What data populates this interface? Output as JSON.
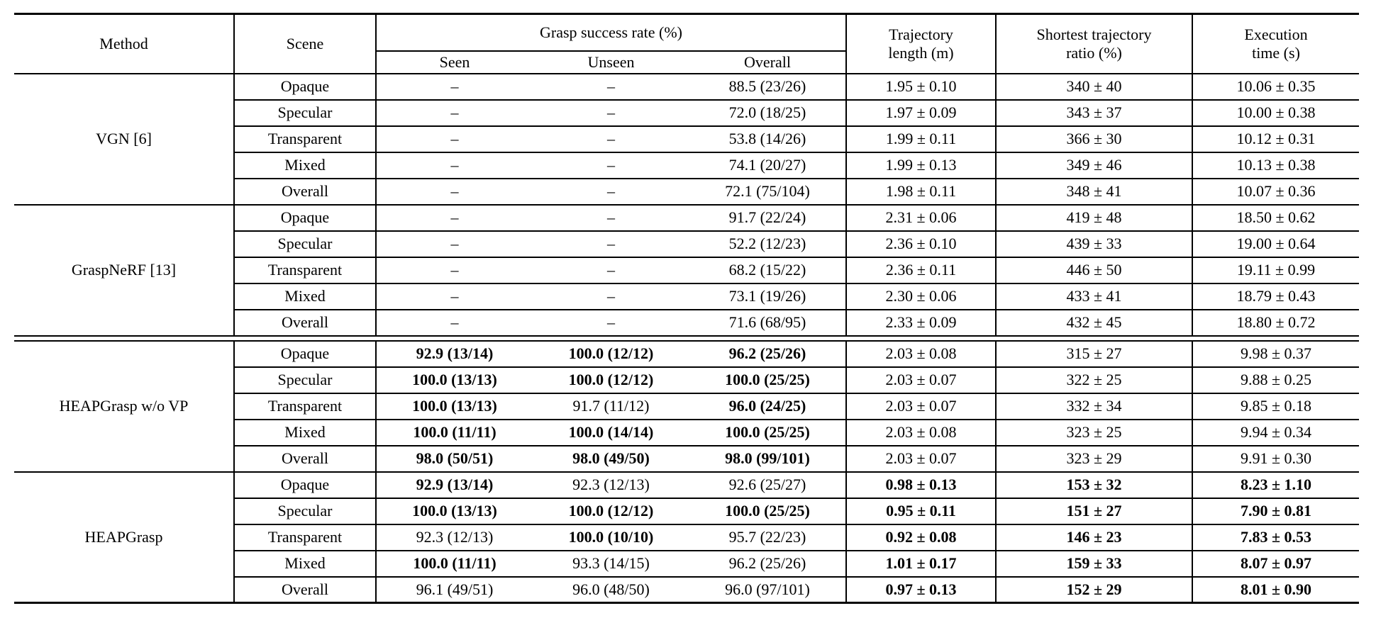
{
  "page": {
    "background": "#ffffff",
    "text_color": "#000000",
    "rule_color": "#000000"
  },
  "table": {
    "header": {
      "method": "Method",
      "scene": "Scene",
      "grasp_group": "Grasp success rate (%)",
      "sub_seen": "Seen",
      "sub_unseen": "Unseen",
      "sub_overall": "Overall",
      "traj_length": {
        "line1": "Trajectory",
        "line2": "length (m)"
      },
      "shortest_ratio": {
        "line1": "Shortest trajectory",
        "line2": "ratio (%)"
      },
      "exec_time": {
        "line1": "Execution",
        "line2": "time (s)"
      }
    },
    "blocks": [
      {
        "method": "VGN [6]",
        "separator_before": "none",
        "rows": [
          {
            "scene": "Opaque",
            "cells": [
              {
                "text": "–",
                "bold": false
              },
              {
                "text": "–",
                "bold": false
              },
              {
                "text": "88.5 (23/26)",
                "bold": false
              },
              {
                "text": "1.95 ± 0.10",
                "bold": false
              },
              {
                "text": "340 ± 40",
                "bold": false
              },
              {
                "text": "10.06 ± 0.35",
                "bold": false
              }
            ]
          },
          {
            "scene": "Specular",
            "cells": [
              {
                "text": "–",
                "bold": false
              },
              {
                "text": "–",
                "bold": false
              },
              {
                "text": "72.0 (18/25)",
                "bold": false
              },
              {
                "text": "1.97 ± 0.09",
                "bold": false
              },
              {
                "text": "343 ± 37",
                "bold": false
              },
              {
                "text": "10.00 ± 0.38",
                "bold": false
              }
            ]
          },
          {
            "scene": "Transparent",
            "cells": [
              {
                "text": "–",
                "bold": false
              },
              {
                "text": "–",
                "bold": false
              },
              {
                "text": "53.8 (14/26)",
                "bold": false
              },
              {
                "text": "1.99 ± 0.11",
                "bold": false
              },
              {
                "text": "366 ± 30",
                "bold": false
              },
              {
                "text": "10.12 ± 0.31",
                "bold": false
              }
            ]
          },
          {
            "scene": "Mixed",
            "cells": [
              {
                "text": "–",
                "bold": false
              },
              {
                "text": "–",
                "bold": false
              },
              {
                "text": "74.1 (20/27)",
                "bold": false
              },
              {
                "text": "1.99 ± 0.13",
                "bold": false
              },
              {
                "text": "349 ± 46",
                "bold": false
              },
              {
                "text": "10.13 ± 0.38",
                "bold": false
              }
            ]
          },
          {
            "scene": "Overall",
            "cells": [
              {
                "text": "–",
                "bold": false
              },
              {
                "text": "–",
                "bold": false
              },
              {
                "text": "72.1 (75/104)",
                "bold": false
              },
              {
                "text": "1.98 ± 0.11",
                "bold": false
              },
              {
                "text": "348 ± 41",
                "bold": false
              },
              {
                "text": "10.07 ± 0.36",
                "bold": false
              }
            ]
          }
        ]
      },
      {
        "method": "GraspNeRF [13]",
        "separator_before": "single",
        "rows": [
          {
            "scene": "Opaque",
            "cells": [
              {
                "text": "–",
                "bold": false
              },
              {
                "text": "–",
                "bold": false
              },
              {
                "text": "91.7 (22/24)",
                "bold": false
              },
              {
                "text": "2.31 ± 0.06",
                "bold": false
              },
              {
                "text": "419 ± 48",
                "bold": false
              },
              {
                "text": "18.50 ± 0.62",
                "bold": false
              }
            ]
          },
          {
            "scene": "Specular",
            "cells": [
              {
                "text": "–",
                "bold": false
              },
              {
                "text": "–",
                "bold": false
              },
              {
                "text": "52.2 (12/23)",
                "bold": false
              },
              {
                "text": "2.36 ± 0.10",
                "bold": false
              },
              {
                "text": "439 ± 33",
                "bold": false
              },
              {
                "text": "19.00 ± 0.64",
                "bold": false
              }
            ]
          },
          {
            "scene": "Transparent",
            "cells": [
              {
                "text": "–",
                "bold": false
              },
              {
                "text": "–",
                "bold": false
              },
              {
                "text": "68.2 (15/22)",
                "bold": false
              },
              {
                "text": "2.36 ± 0.11",
                "bold": false
              },
              {
                "text": "446 ± 50",
                "bold": false
              },
              {
                "text": "19.11 ± 0.99",
                "bold": false
              }
            ]
          },
          {
            "scene": "Mixed",
            "cells": [
              {
                "text": "–",
                "bold": false
              },
              {
                "text": "–",
                "bold": false
              },
              {
                "text": "73.1 (19/26)",
                "bold": false
              },
              {
                "text": "2.30 ± 0.06",
                "bold": false
              },
              {
                "text": "433 ± 41",
                "bold": false
              },
              {
                "text": "18.79 ± 0.43",
                "bold": false
              }
            ]
          },
          {
            "scene": "Overall",
            "cells": [
              {
                "text": "–",
                "bold": false
              },
              {
                "text": "–",
                "bold": false
              },
              {
                "text": "71.6 (68/95)",
                "bold": false
              },
              {
                "text": "2.33 ± 0.09",
                "bold": false
              },
              {
                "text": "432 ± 45",
                "bold": false
              },
              {
                "text": "18.80 ± 0.72",
                "bold": false
              }
            ]
          }
        ]
      },
      {
        "method": "HEAPGrasp w/o VP",
        "separator_before": "double",
        "rows": [
          {
            "scene": "Opaque",
            "cells": [
              {
                "text": "92.9 (13/14)",
                "bold": true
              },
              {
                "text": "100.0 (12/12)",
                "bold": true
              },
              {
                "text": "96.2 (25/26)",
                "bold": true
              },
              {
                "text": "2.03 ± 0.08",
                "bold": false
              },
              {
                "text": "315 ± 27",
                "bold": false
              },
              {
                "text": "9.98 ± 0.37",
                "bold": false
              }
            ]
          },
          {
            "scene": "Specular",
            "cells": [
              {
                "text": "100.0 (13/13)",
                "bold": true
              },
              {
                "text": "100.0 (12/12)",
                "bold": true
              },
              {
                "text": "100.0 (25/25)",
                "bold": true
              },
              {
                "text": "2.03 ± 0.07",
                "bold": false
              },
              {
                "text": "322 ± 25",
                "bold": false
              },
              {
                "text": "9.88 ± 0.25",
                "bold": false
              }
            ]
          },
          {
            "scene": "Transparent",
            "cells": [
              {
                "text": "100.0 (13/13)",
                "bold": true
              },
              {
                "text": "91.7 (11/12)",
                "bold": false
              },
              {
                "text": "96.0 (24/25)",
                "bold": true
              },
              {
                "text": "2.03 ± 0.07",
                "bold": false
              },
              {
                "text": "332 ± 34",
                "bold": false
              },
              {
                "text": "9.85 ± 0.18",
                "bold": false
              }
            ]
          },
          {
            "scene": "Mixed",
            "cells": [
              {
                "text": "100.0 (11/11)",
                "bold": true
              },
              {
                "text": "100.0 (14/14)",
                "bold": true
              },
              {
                "text": "100.0 (25/25)",
                "bold": true
              },
              {
                "text": "2.03 ± 0.08",
                "bold": false
              },
              {
                "text": "323 ± 25",
                "bold": false
              },
              {
                "text": "9.94 ± 0.34",
                "bold": false
              }
            ]
          },
          {
            "scene": "Overall",
            "cells": [
              {
                "text": "98.0 (50/51)",
                "bold": true
              },
              {
                "text": "98.0 (49/50)",
                "bold": true
              },
              {
                "text": "98.0 (99/101)",
                "bold": true
              },
              {
                "text": "2.03 ± 0.07",
                "bold": false
              },
              {
                "text": "323 ± 29",
                "bold": false
              },
              {
                "text": "9.91 ± 0.30",
                "bold": false
              }
            ]
          }
        ]
      },
      {
        "method": "HEAPGrasp",
        "separator_before": "single",
        "rows": [
          {
            "scene": "Opaque",
            "cells": [
              {
                "text": "92.9 (13/14)",
                "bold": true
              },
              {
                "text": "92.3 (12/13)",
                "bold": false
              },
              {
                "text": "92.6 (25/27)",
                "bold": false
              },
              {
                "text": "0.98 ± 0.13",
                "bold": true
              },
              {
                "text": "153 ± 32",
                "bold": true
              },
              {
                "text": "8.23 ± 1.10",
                "bold": true
              }
            ]
          },
          {
            "scene": "Specular",
            "cells": [
              {
                "text": "100.0 (13/13)",
                "bold": true
              },
              {
                "text": "100.0 (12/12)",
                "bold": true
              },
              {
                "text": "100.0 (25/25)",
                "bold": true
              },
              {
                "text": "0.95 ± 0.11",
                "bold": true
              },
              {
                "text": "151 ± 27",
                "bold": true
              },
              {
                "text": "7.90 ± 0.81",
                "bold": true
              }
            ]
          },
          {
            "scene": "Transparent",
            "cells": [
              {
                "text": "92.3 (12/13)",
                "bold": false
              },
              {
                "text": "100.0 (10/10)",
                "bold": true
              },
              {
                "text": "95.7 (22/23)",
                "bold": false
              },
              {
                "text": "0.92 ± 0.08",
                "bold": true
              },
              {
                "text": "146 ± 23",
                "bold": true
              },
              {
                "text": "7.83 ± 0.53",
                "bold": true
              }
            ]
          },
          {
            "scene": "Mixed",
            "cells": [
              {
                "text": "100.0 (11/11)",
                "bold": true
              },
              {
                "text": "93.3 (14/15)",
                "bold": false
              },
              {
                "text": "96.2 (25/26)",
                "bold": false
              },
              {
                "text": "1.01 ± 0.17",
                "bold": true
              },
              {
                "text": "159 ± 33",
                "bold": true
              },
              {
                "text": "8.07 ± 0.97",
                "bold": true
              }
            ]
          },
          {
            "scene": "Overall",
            "cells": [
              {
                "text": "96.1 (49/51)",
                "bold": false
              },
              {
                "text": "96.0 (48/50)",
                "bold": false
              },
              {
                "text": "96.0 (97/101)",
                "bold": false
              },
              {
                "text": "0.97 ± 0.13",
                "bold": true
              },
              {
                "text": "152 ± 29",
                "bold": true
              },
              {
                "text": "8.01 ± 0.90",
                "bold": true
              }
            ]
          }
        ]
      }
    ]
  }
}
